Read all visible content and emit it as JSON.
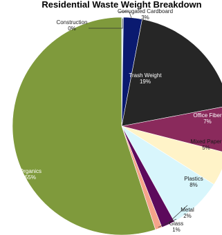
{
  "chart_data": {
    "type": "pie",
    "title": "Residential Waste Weight Breakdown",
    "slices": [
      {
        "name": "Corrugated Cardboard",
        "value": 3,
        "label_value": "3%",
        "color": "#0a1a70",
        "label_color": "#1a1a1a"
      },
      {
        "name": "Trash Weight",
        "value": 19,
        "label_value": "19%",
        "color": "#262626",
        "label_color": "#ffffff"
      },
      {
        "name": "Office Fiber",
        "value": 7,
        "label_value": "7%",
        "color": "#8a2a5c",
        "label_color": "#ffffff"
      },
      {
        "name": "Mixed Paper",
        "value": 5,
        "label_value": "5%",
        "color": "#fff3c8",
        "label_color": "#1a1a1a"
      },
      {
        "name": "Plastics",
        "value": 8,
        "label_value": "8%",
        "color": "#d8f6fc",
        "label_color": "#1a1a1a"
      },
      {
        "name": "Metal",
        "value": 2,
        "label_value": "2%",
        "color": "#5c0a5c",
        "label_color": "#1a1a1a"
      },
      {
        "name": "Glass",
        "value": 1,
        "label_value": "1%",
        "color": "#f5a38a",
        "label_color": "#1a1a1a"
      },
      {
        "name": "Organics",
        "value": 55,
        "label_value": "55%",
        "color": "#7f9a3c",
        "label_color": "#ffffff"
      },
      {
        "name": "Construction",
        "value": 0,
        "label_value": "0%",
        "color": "#cfe6ec",
        "label_color": "#1a1a1a"
      }
    ]
  }
}
